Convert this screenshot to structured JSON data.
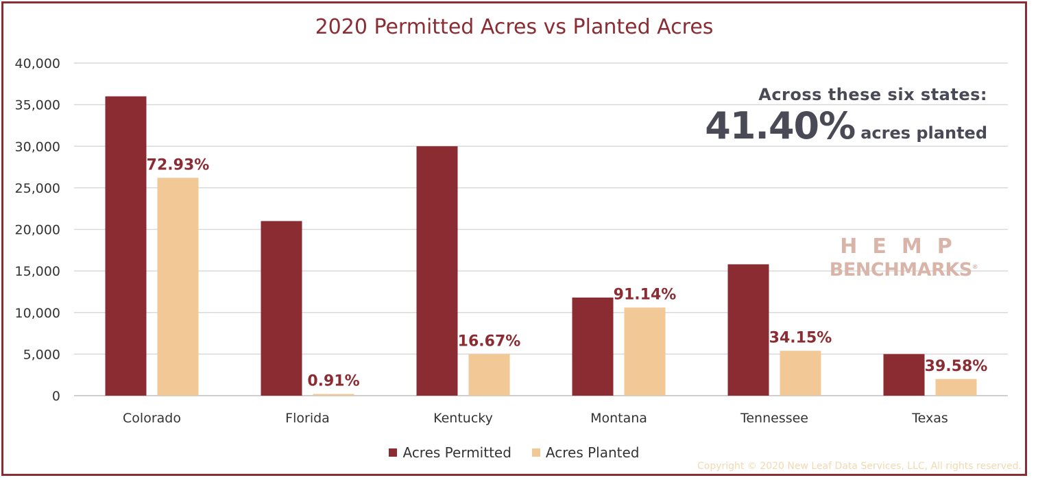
{
  "title": "2020 Permitted Acres vs Planted Acres",
  "annotation": {
    "line1": "Across these six states:",
    "big_value": "41.40%",
    "big_suffix": "acres planted"
  },
  "logo": {
    "line1": "HEMP",
    "line2": "BENCHMARKS",
    "mark": "®"
  },
  "copyright": "Copyright © 2020 New Leaf Data Services, LLC, All rights reserved.",
  "colors": {
    "permitted": "#8B2C33",
    "planted": "#F2C897",
    "frame": "#8B2C33",
    "grid": "#d9d9d9"
  },
  "chart_data": {
    "type": "bar",
    "title": "2020 Permitted Acres vs Planted Acres",
    "categories": [
      "Colorado",
      "Florida",
      "Kentucky",
      "Montana",
      "Tennessee",
      "Texas"
    ],
    "series": [
      {
        "name": "Acres Permitted",
        "values": [
          36000,
          21000,
          30000,
          11800,
          15800,
          5000
        ]
      },
      {
        "name": "Acres Planted",
        "values": [
          26200,
          200,
          5000,
          10600,
          5400,
          2000
        ]
      }
    ],
    "data_labels": [
      "72.93%",
      "0.91%",
      "16.67%",
      "91.14%",
      "34.15%",
      "39.58%"
    ],
    "ylim": [
      0,
      40000
    ],
    "yticks": [
      0,
      5000,
      10000,
      15000,
      20000,
      25000,
      30000,
      35000,
      40000
    ],
    "ytick_labels": [
      "0",
      "5,000",
      "10,000",
      "15,000",
      "20,000",
      "25,000",
      "30,000",
      "35,000",
      "40,000"
    ],
    "grid": true,
    "legend": "bottom"
  }
}
